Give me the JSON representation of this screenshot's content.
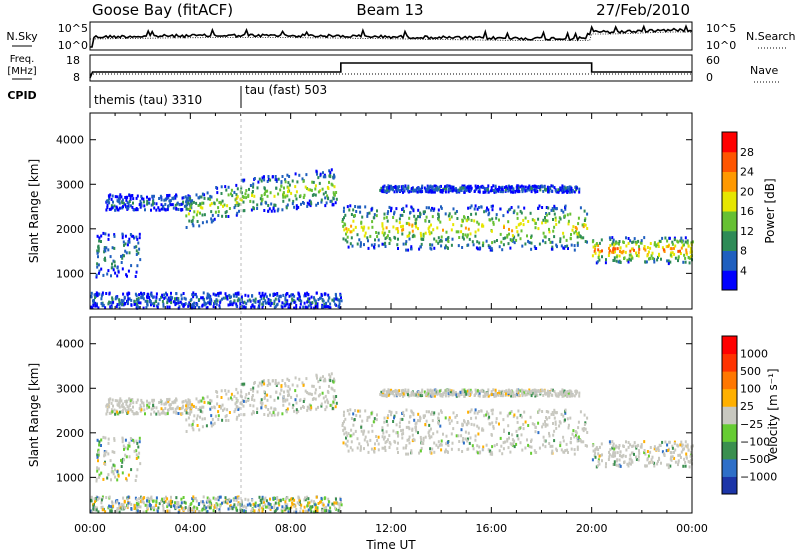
{
  "header": {
    "station": "Goose Bay (fitACF)",
    "beam": "Beam 13",
    "date": "27/Feb/2010"
  },
  "noise_panel": {
    "left_label": "N.Sky",
    "right_label": "N.Search",
    "left_ticks": [
      "10^5",
      "10^0"
    ],
    "right_ticks": [
      "10^5",
      "10^0"
    ]
  },
  "freq_panel": {
    "left_label_1": "Freq.",
    "left_label_2": "[MHz]",
    "right_label": "Nave",
    "left_ticks": [
      "18",
      "8"
    ],
    "right_ticks": [
      "60",
      "0"
    ]
  },
  "cpid": {
    "label": "CPID",
    "modes": [
      {
        "name": "themis (tau) 3310",
        "start_hour": 0
      },
      {
        "name": "tau (fast) 503",
        "start_hour": 6
      }
    ]
  },
  "chart_data": [
    {
      "type": "heatmap",
      "name": "power",
      "xlabel": "",
      "ylabel": "Slant Range [km]",
      "x_range_hours": [
        0,
        24
      ],
      "ylim": [
        200,
        4600
      ],
      "y_ticks": [
        1000,
        2000,
        3000,
        4000
      ],
      "colorbar": {
        "label": "Power [dB]",
        "ticks": [
          "4",
          "8",
          "12",
          "16",
          "20",
          "24",
          "28"
        ],
        "colors": [
          "#0000ff",
          "#1f5fbf",
          "#2e8b57",
          "#66c033",
          "#e6e600",
          "#ff9900",
          "#ff5500",
          "#ff0000"
        ]
      },
      "echo_regions": [
        {
          "t": [
            0.2,
            2.0
          ],
          "range": [
            950,
            1950
          ],
          "power_db": 8
        },
        {
          "t": [
            0.6,
            4.0
          ],
          "range": [
            2450,
            2800
          ],
          "power_db": 6
        },
        {
          "t": [
            3.8,
            9.8
          ],
          "range": [
            2350,
            3150
          ],
          "power_db": 14
        },
        {
          "t": [
            10.0,
            19.8
          ],
          "range": [
            1550,
            2550
          ],
          "power_db": 16
        },
        {
          "t": [
            11.5,
            19.5
          ],
          "range": [
            2850,
            3000
          ],
          "power_db": 6
        },
        {
          "t": [
            20.0,
            24.0
          ],
          "range": [
            1250,
            1850
          ],
          "power_db": 20
        },
        {
          "t": [
            0.0,
            10.0
          ],
          "range": [
            250,
            600
          ],
          "power_db": 6
        }
      ]
    },
    {
      "type": "heatmap",
      "name": "velocity",
      "xlabel": "Time UT",
      "ylabel": "Slant Range [km]",
      "x_range_hours": [
        0,
        24
      ],
      "x_ticks": [
        "00:00",
        "04:00",
        "08:00",
        "12:00",
        "16:00",
        "20:00",
        "00:00"
      ],
      "ylim": [
        200,
        4600
      ],
      "y_ticks": [
        1000,
        2000,
        3000,
        4000
      ],
      "colorbar": {
        "label": "Velocity [m s⁻¹]",
        "ticks": [
          "1000",
          "500",
          "100",
          "25",
          "−25",
          "−100",
          "−500",
          "−1000"
        ],
        "colors": [
          "#1c35a8",
          "#2e6fc8",
          "#3a8f4f",
          "#66cc33",
          "#c8c8c0",
          "#ffb000",
          "#ff7700",
          "#ff3300",
          "#ff0000"
        ]
      }
    }
  ]
}
